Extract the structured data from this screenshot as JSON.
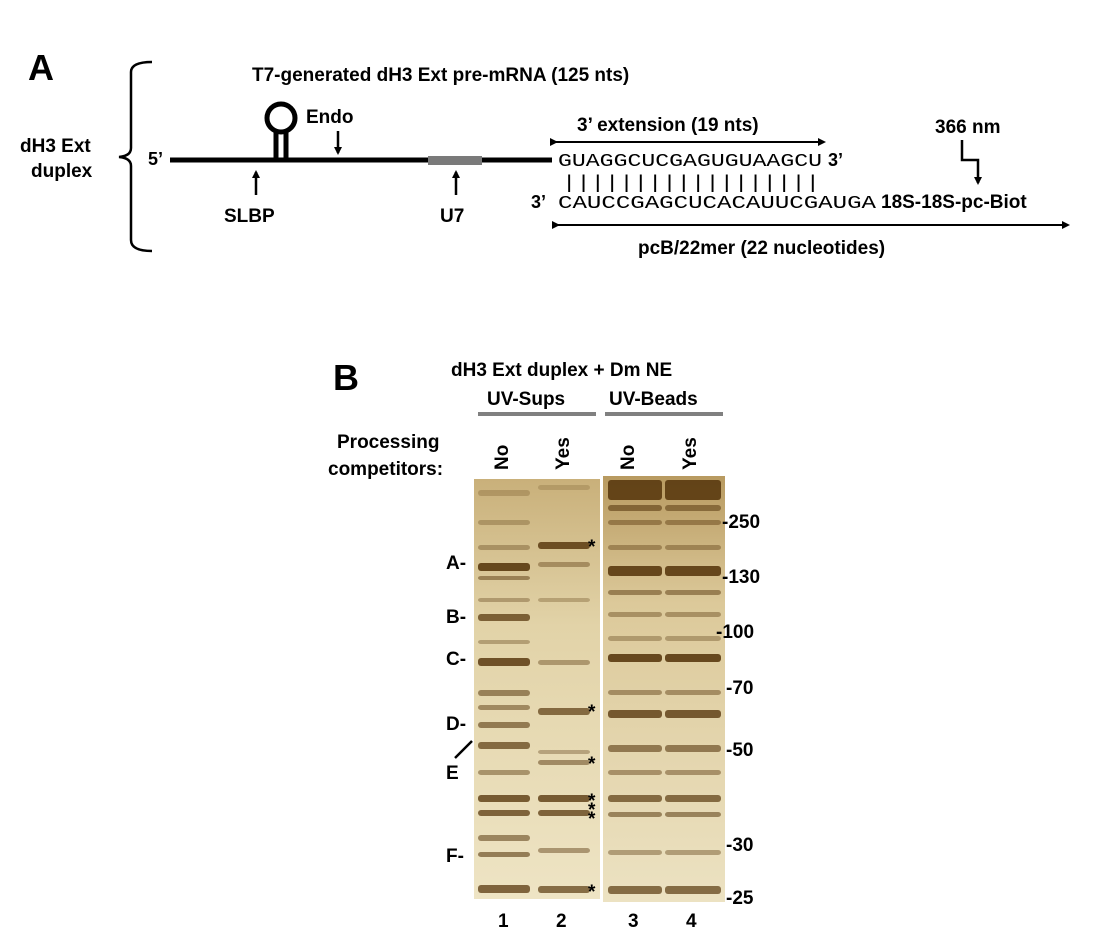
{
  "panelA": {
    "label": "A",
    "bracket_label_line1": "dH3 Ext",
    "bracket_label_line2": "duplex",
    "title": "T7-generated dH3 Ext pre-mRNA (125 nts)",
    "five_prime": "5’",
    "endo": "Endo",
    "slbp": "SLBP",
    "u7": "U7",
    "extension_label": "3’ extension (19 nts)",
    "top_strand": "GUAGGCUCGAGUGUAAGCU",
    "top_three_prime": "3’",
    "pairing_ticks": "||||||||||||||||||",
    "bottom_three_prime": "3’",
    "bottom_strand": "CAUCCGAGCUCACAUUCGAUGA",
    "bottom_suffix": "18S-18S-pc-Biot",
    "uv_label": "366 nm",
    "oligo_label": "pcB/22mer (22 nucleotides)"
  },
  "panelB": {
    "label": "B",
    "title": "dH3 Ext duplex + Dm NE",
    "group_sups": "UV-Sups",
    "group_beads": "UV-Beads",
    "row_label_line1": "Processing",
    "row_label_line2": "competitors:",
    "lane_conditions": [
      "No",
      "Yes",
      "No",
      "Yes"
    ],
    "lane_numbers": [
      "1",
      "2",
      "3",
      "4"
    ],
    "band_labels": [
      "A-",
      "B-",
      "C-",
      "D-",
      "E",
      "F-"
    ],
    "asterisk": "*",
    "markers": [
      "-250",
      "-130",
      "-100",
      "-70",
      "-50",
      "-30",
      "-25"
    ],
    "colors": {
      "gel_background": "#e6d9b5",
      "band": "#5a3a10",
      "group_bar": "#808080",
      "u7_box": "#7a7a7a"
    }
  }
}
